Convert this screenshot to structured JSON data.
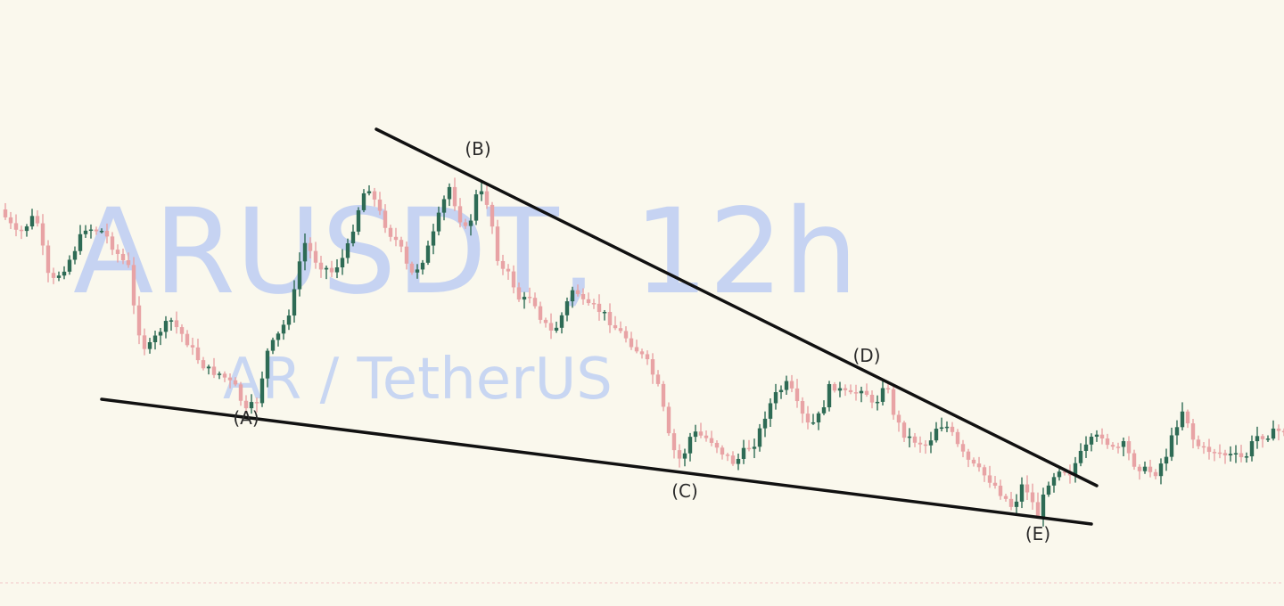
{
  "watermark": {
    "symbol_timeframe": "ARUSDT, 12h",
    "pair_name": "AR / TetherUS"
  },
  "colors": {
    "background": "#faf8ed",
    "up_candle": "#2e6b55",
    "down_candle": "#e8a3a5",
    "trendline": "#111111",
    "watermark": "#bccdf2",
    "bottom_border": "#f2c6c6"
  },
  "chart_data": {
    "type": "candlestick",
    "title": "ARUSDT, 12h",
    "subtitle": "AR / TetherUS",
    "xlabel": "",
    "ylabel": "",
    "x_index_range": [
      0,
      720
    ],
    "y_range": [
      0,
      680
    ],
    "grid": false,
    "legend": "none",
    "wave_labels": [
      {
        "label": "(A)",
        "x": 138,
        "y": 452,
        "placement": "below"
      },
      {
        "label": "(B)",
        "x": 268,
        "y": 186,
        "placement": "above"
      },
      {
        "label": "(C)",
        "x": 384,
        "y": 534,
        "placement": "below"
      },
      {
        "label": "(D)",
        "x": 486,
        "y": 418,
        "placement": "above"
      },
      {
        "label": "(E)",
        "x": 582,
        "y": 582,
        "placement": "below"
      }
    ],
    "trendlines": [
      {
        "name": "resistance",
        "x": [
          211,
          615
        ],
        "y": [
          145,
          545
        ]
      },
      {
        "name": "support",
        "x": [
          57,
          612
        ],
        "y": [
          448,
          588
        ]
      }
    ],
    "anchors": [
      {
        "x": 0,
        "y": 235
      },
      {
        "x": 10,
        "y": 265
      },
      {
        "x": 20,
        "y": 240
      },
      {
        "x": 28,
        "y": 320
      },
      {
        "x": 38,
        "y": 295
      },
      {
        "x": 48,
        "y": 255
      },
      {
        "x": 58,
        "y": 260
      },
      {
        "x": 66,
        "y": 285
      },
      {
        "x": 72,
        "y": 300
      },
      {
        "x": 76,
        "y": 360
      },
      {
        "x": 82,
        "y": 395
      },
      {
        "x": 90,
        "y": 370
      },
      {
        "x": 96,
        "y": 360
      },
      {
        "x": 104,
        "y": 380
      },
      {
        "x": 110,
        "y": 400
      },
      {
        "x": 116,
        "y": 415
      },
      {
        "x": 124,
        "y": 420
      },
      {
        "x": 132,
        "y": 435
      },
      {
        "x": 138,
        "y": 462
      },
      {
        "x": 144,
        "y": 450
      },
      {
        "x": 150,
        "y": 395
      },
      {
        "x": 158,
        "y": 370
      },
      {
        "x": 164,
        "y": 340
      },
      {
        "x": 170,
        "y": 270
      },
      {
        "x": 178,
        "y": 295
      },
      {
        "x": 186,
        "y": 305
      },
      {
        "x": 194,
        "y": 285
      },
      {
        "x": 200,
        "y": 240
      },
      {
        "x": 206,
        "y": 205
      },
      {
        "x": 212,
        "y": 235
      },
      {
        "x": 218,
        "y": 260
      },
      {
        "x": 224,
        "y": 275
      },
      {
        "x": 230,
        "y": 310
      },
      {
        "x": 236,
        "y": 295
      },
      {
        "x": 242,
        "y": 270
      },
      {
        "x": 248,
        "y": 230
      },
      {
        "x": 252,
        "y": 210
      },
      {
        "x": 258,
        "y": 245
      },
      {
        "x": 262,
        "y": 262
      },
      {
        "x": 268,
        "y": 212
      },
      {
        "x": 274,
        "y": 230
      },
      {
        "x": 280,
        "y": 300
      },
      {
        "x": 286,
        "y": 310
      },
      {
        "x": 292,
        "y": 340
      },
      {
        "x": 298,
        "y": 330
      },
      {
        "x": 304,
        "y": 360
      },
      {
        "x": 310,
        "y": 375
      },
      {
        "x": 316,
        "y": 350
      },
      {
        "x": 322,
        "y": 320
      },
      {
        "x": 328,
        "y": 345
      },
      {
        "x": 334,
        "y": 345
      },
      {
        "x": 340,
        "y": 355
      },
      {
        "x": 346,
        "y": 370
      },
      {
        "x": 352,
        "y": 380
      },
      {
        "x": 358,
        "y": 395
      },
      {
        "x": 364,
        "y": 410
      },
      {
        "x": 370,
        "y": 440
      },
      {
        "x": 376,
        "y": 500
      },
      {
        "x": 382,
        "y": 518
      },
      {
        "x": 388,
        "y": 485
      },
      {
        "x": 394,
        "y": 490
      },
      {
        "x": 400,
        "y": 495
      },
      {
        "x": 406,
        "y": 510
      },
      {
        "x": 412,
        "y": 520
      },
      {
        "x": 418,
        "y": 505
      },
      {
        "x": 424,
        "y": 495
      },
      {
        "x": 430,
        "y": 460
      },
      {
        "x": 436,
        "y": 440
      },
      {
        "x": 442,
        "y": 430
      },
      {
        "x": 448,
        "y": 460
      },
      {
        "x": 454,
        "y": 480
      },
      {
        "x": 460,
        "y": 465
      },
      {
        "x": 466,
        "y": 430
      },
      {
        "x": 472,
        "y": 440
      },
      {
        "x": 478,
        "y": 445
      },
      {
        "x": 484,
        "y": 432
      },
      {
        "x": 490,
        "y": 460
      },
      {
        "x": 496,
        "y": 425
      },
      {
        "x": 502,
        "y": 470
      },
      {
        "x": 508,
        "y": 490
      },
      {
        "x": 514,
        "y": 495
      },
      {
        "x": 520,
        "y": 500
      },
      {
        "x": 526,
        "y": 475
      },
      {
        "x": 532,
        "y": 480
      },
      {
        "x": 538,
        "y": 505
      },
      {
        "x": 544,
        "y": 520
      },
      {
        "x": 550,
        "y": 530
      },
      {
        "x": 556,
        "y": 540
      },
      {
        "x": 562,
        "y": 555
      },
      {
        "x": 568,
        "y": 570
      },
      {
        "x": 574,
        "y": 540
      },
      {
        "x": 578,
        "y": 560
      },
      {
        "x": 582,
        "y": 578
      },
      {
        "x": 588,
        "y": 540
      },
      {
        "x": 594,
        "y": 525
      },
      {
        "x": 600,
        "y": 530
      },
      {
        "x": 606,
        "y": 510
      },
      {
        "x": 612,
        "y": 495
      },
      {
        "x": 618,
        "y": 488
      },
      {
        "x": 624,
        "y": 505
      },
      {
        "x": 630,
        "y": 500
      },
      {
        "x": 636,
        "y": 520
      },
      {
        "x": 642,
        "y": 528
      },
      {
        "x": 648,
        "y": 530
      },
      {
        "x": 654,
        "y": 510
      },
      {
        "x": 660,
        "y": 475
      },
      {
        "x": 664,
        "y": 455
      },
      {
        "x": 668,
        "y": 490
      },
      {
        "x": 674,
        "y": 505
      },
      {
        "x": 680,
        "y": 505
      },
      {
        "x": 686,
        "y": 510
      },
      {
        "x": 692,
        "y": 512
      },
      {
        "x": 698,
        "y": 515
      },
      {
        "x": 704,
        "y": 490
      },
      {
        "x": 712,
        "y": 487
      },
      {
        "x": 720,
        "y": 482
      }
    ]
  }
}
